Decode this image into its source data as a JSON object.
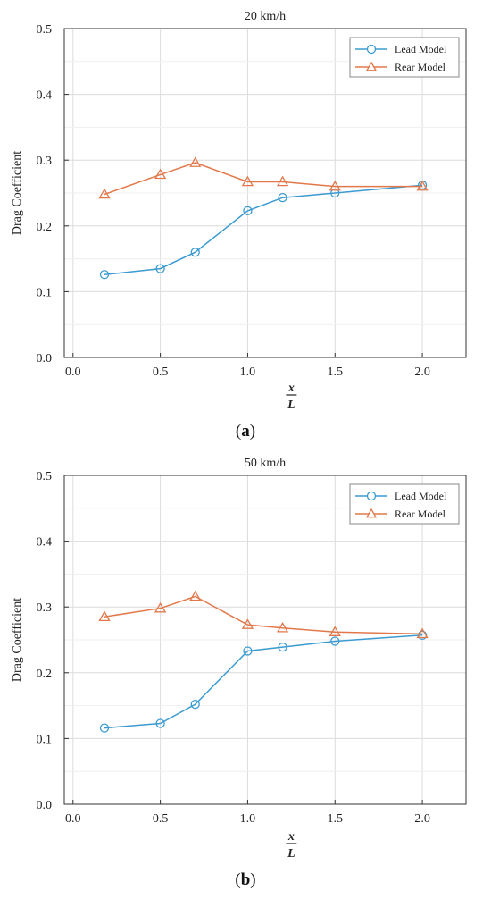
{
  "chart_data": [
    {
      "type": "line",
      "title": "20 km/h",
      "xlabel_num": "x",
      "xlabel_den": "L",
      "ylabel": "Drag Coefficient",
      "caption_open": "(",
      "caption_letter": "a",
      "caption_close": ")",
      "xlim": [
        -0.05,
        2.25
      ],
      "ylim": [
        0,
        0.5
      ],
      "xticks": [
        "0.0",
        "0.5",
        "1.0",
        "1.5",
        "2.0"
      ],
      "yticks": [
        "0.0",
        "0.1",
        "0.2",
        "0.3",
        "0.4",
        "0.5"
      ],
      "grid": true,
      "legend_position": "top-right",
      "series": [
        {
          "name": "Lead Model",
          "marker": "circle",
          "color": "#3b9bd1",
          "x": [
            0.18,
            0.5,
            0.7,
            1.0,
            1.2,
            1.5,
            2.0
          ],
          "y": [
            0.126,
            0.135,
            0.16,
            0.223,
            0.243,
            0.25,
            0.262
          ]
        },
        {
          "name": "Rear Model",
          "marker": "triangle",
          "color": "#e2784a",
          "x": [
            0.18,
            0.5,
            0.7,
            1.0,
            1.2,
            1.5,
            2.0
          ],
          "y": [
            0.248,
            0.278,
            0.296,
            0.267,
            0.267,
            0.26,
            0.26
          ]
        }
      ]
    },
    {
      "type": "line",
      "title": "50 km/h",
      "xlabel_num": "x",
      "xlabel_den": "L",
      "ylabel": "Drag Coefficient",
      "caption_open": "(",
      "caption_letter": "b",
      "caption_close": ")",
      "xlim": [
        -0.05,
        2.25
      ],
      "ylim": [
        0,
        0.5
      ],
      "xticks": [
        "0.0",
        "0.5",
        "1.0",
        "1.5",
        "2.0"
      ],
      "yticks": [
        "0.0",
        "0.1",
        "0.2",
        "0.3",
        "0.4",
        "0.5"
      ],
      "grid": true,
      "legend_position": "top-right",
      "series": [
        {
          "name": "Lead Model",
          "marker": "circle",
          "color": "#3b9bd1",
          "x": [
            0.18,
            0.5,
            0.7,
            1.0,
            1.2,
            1.5,
            2.0
          ],
          "y": [
            0.116,
            0.123,
            0.152,
            0.233,
            0.239,
            0.248,
            0.257
          ]
        },
        {
          "name": "Rear Model",
          "marker": "triangle",
          "color": "#e2784a",
          "x": [
            0.18,
            0.5,
            0.7,
            1.0,
            1.2,
            1.5,
            2.0
          ],
          "y": [
            0.285,
            0.298,
            0.316,
            0.273,
            0.268,
            0.262,
            0.259
          ]
        }
      ]
    }
  ]
}
